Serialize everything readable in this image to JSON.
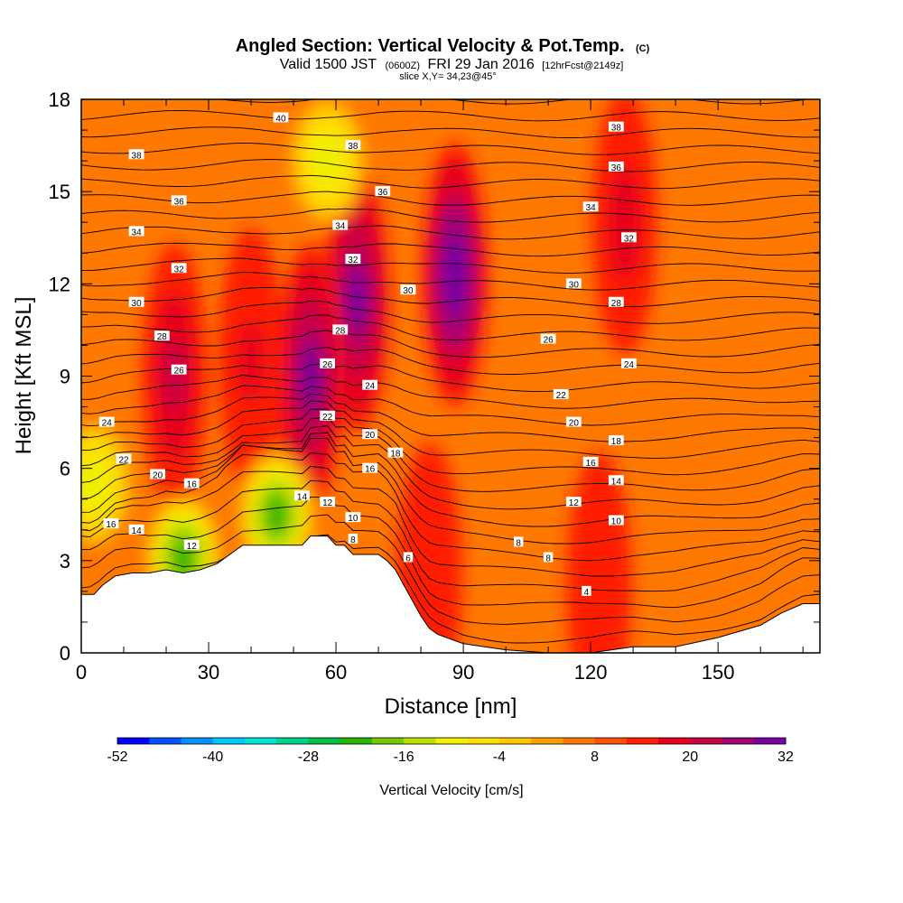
{
  "title": {
    "main": "Angled Section: Vertical Velocity & Pot.Temp.",
    "main_suffix": "(C)",
    "valid_prefix": "Valid 1500 JST",
    "valid_z": "(0600Z)",
    "valid_date": "FRI 29 Jan 2016",
    "valid_fcst": "[12hrFcst@2149z]",
    "slice": "slice X,Y= 34,23@45°"
  },
  "chart_data": {
    "type": "heatmap",
    "xlabel": "Distance [nm]",
    "ylabel": "Height [Kft MSL]",
    "xlim": [
      0,
      174
    ],
    "ylim": [
      0,
      18
    ],
    "x_ticks": [
      0,
      30,
      60,
      90,
      120,
      150
    ],
    "y_ticks": [
      0,
      3,
      6,
      9,
      12,
      15,
      18
    ],
    "colorbar": {
      "label": "Vertical Velocity [cm/s]",
      "min": -52,
      "max": 32,
      "step": 4,
      "tick_values": [
        -52,
        -40,
        -28,
        -16,
        -4,
        8,
        20,
        32
      ],
      "tick_labels": [
        "-52",
        "-40",
        "-28",
        "-16",
        "-4",
        "8",
        "20",
        "32"
      ],
      "colors": [
        "#0000ff",
        "#0050ff",
        "#0090ff",
        "#00c8ff",
        "#00e6d2",
        "#00d28c",
        "#00be46",
        "#28b400",
        "#78c800",
        "#bede00",
        "#f0f000",
        "#ffe100",
        "#ffc800",
        "#ffa000",
        "#ff7800",
        "#ff5000",
        "#ff1e00",
        "#e6001e",
        "#c80046",
        "#a00078",
        "#7800a0"
      ]
    },
    "terrain_profile": {
      "x": [
        0,
        3,
        5,
        8,
        12,
        16,
        20,
        24,
        28,
        32,
        36,
        38,
        42,
        46,
        50,
        52,
        54,
        56,
        58,
        60,
        62,
        64,
        66,
        68,
        70,
        72,
        74,
        76,
        78,
        80,
        82,
        84,
        86,
        90,
        95,
        100,
        110,
        120,
        130,
        135,
        140,
        150,
        160,
        165,
        170,
        174
      ],
      "y": [
        1.9,
        1.9,
        2.2,
        2.5,
        2.6,
        2.6,
        2.7,
        2.6,
        2.7,
        2.9,
        3.3,
        3.5,
        3.5,
        3.5,
        3.5,
        3.5,
        3.8,
        3.8,
        3.8,
        3.5,
        3.5,
        3.2,
        3.2,
        3.2,
        3.2,
        3.0,
        2.7,
        2.2,
        1.7,
        1.2,
        0.8,
        0.6,
        0.5,
        0.3,
        0.2,
        0.1,
        0.0,
        0.0,
        0.2,
        0.2,
        0.2,
        0.5,
        0.9,
        1.3,
        1.6,
        1.6
      ]
    },
    "velocity_features": [
      {
        "kind": "updraft",
        "x": 88,
        "y": 12.3,
        "peak": 32
      },
      {
        "kind": "updraft",
        "x": 65,
        "y": 11.5,
        "peak": 28
      },
      {
        "kind": "updraft",
        "x": 54,
        "y": 9.0,
        "peak": 28
      },
      {
        "kind": "updraft",
        "x": 22,
        "y": 9.0,
        "peak": 20
      },
      {
        "kind": "updraft",
        "x": 40,
        "y": 9.5,
        "peak": 16
      },
      {
        "kind": "updraft",
        "x": 128,
        "y": 14.0,
        "peak": 18
      },
      {
        "kind": "updraft",
        "x": 122,
        "y": 2.2,
        "peak": 14
      },
      {
        "kind": "updraft",
        "x": 82,
        "y": 2.5,
        "peak": 14
      },
      {
        "kind": "downdraft",
        "x": 58,
        "y": 16.0,
        "peak": -12
      },
      {
        "kind": "downdraft",
        "x": 46,
        "y": 4.5,
        "peak": -24
      },
      {
        "kind": "downdraft",
        "x": 24,
        "y": 3.1,
        "peak": -22
      },
      {
        "kind": "downdraft",
        "x": 3,
        "y": 5.5,
        "peak": -10
      }
    ],
    "isentrope_labels": [
      {
        "value": "40",
        "x": 47,
        "y": 17.4
      },
      {
        "value": "38",
        "x": 13,
        "y": 16.2
      },
      {
        "value": "38",
        "x": 64,
        "y": 16.5
      },
      {
        "value": "38",
        "x": 126,
        "y": 17.1
      },
      {
        "value": "36",
        "x": 23,
        "y": 14.7
      },
      {
        "value": "36",
        "x": 71,
        "y": 15.0
      },
      {
        "value": "36",
        "x": 126,
        "y": 15.8
      },
      {
        "value": "34",
        "x": 13,
        "y": 13.7
      },
      {
        "value": "34",
        "x": 61,
        "y": 13.9
      },
      {
        "value": "34",
        "x": 120,
        "y": 14.5
      },
      {
        "value": "32",
        "x": 23,
        "y": 12.5
      },
      {
        "value": "32",
        "x": 64,
        "y": 12.8
      },
      {
        "value": "32",
        "x": 129,
        "y": 13.5
      },
      {
        "value": "30",
        "x": 13,
        "y": 11.4
      },
      {
        "value": "30",
        "x": 77,
        "y": 11.8
      },
      {
        "value": "30",
        "x": 116,
        "y": 12.0
      },
      {
        "value": "28",
        "x": 19,
        "y": 10.3
      },
      {
        "value": "28",
        "x": 61,
        "y": 10.5
      },
      {
        "value": "28",
        "x": 126,
        "y": 11.4
      },
      {
        "value": "26",
        "x": 23,
        "y": 9.2
      },
      {
        "value": "26",
        "x": 58,
        "y": 9.4
      },
      {
        "value": "26",
        "x": 110,
        "y": 10.2
      },
      {
        "value": "24",
        "x": 6,
        "y": 7.5
      },
      {
        "value": "24",
        "x": 68,
        "y": 8.7
      },
      {
        "value": "24",
        "x": 129,
        "y": 9.4
      },
      {
        "value": "22",
        "x": 10,
        "y": 6.3
      },
      {
        "value": "22",
        "x": 58,
        "y": 7.7
      },
      {
        "value": "22",
        "x": 113,
        "y": 8.4
      },
      {
        "value": "20",
        "x": 18,
        "y": 5.8
      },
      {
        "value": "20",
        "x": 68,
        "y": 7.1
      },
      {
        "value": "20",
        "x": 116,
        "y": 7.5
      },
      {
        "value": "18",
        "x": 74,
        "y": 6.5
      },
      {
        "value": "18",
        "x": 126,
        "y": 6.9
      },
      {
        "value": "16",
        "x": 26,
        "y": 5.5
      },
      {
        "value": "16",
        "x": 68,
        "y": 6.0
      },
      {
        "value": "16",
        "x": 120,
        "y": 6.2
      },
      {
        "value": "16",
        "x": 7,
        "y": 4.2
      },
      {
        "value": "14",
        "x": 13,
        "y": 4.0
      },
      {
        "value": "14",
        "x": 52,
        "y": 5.1
      },
      {
        "value": "14",
        "x": 126,
        "y": 5.6
      },
      {
        "value": "12",
        "x": 26,
        "y": 3.5
      },
      {
        "value": "12",
        "x": 58,
        "y": 4.9
      },
      {
        "value": "12",
        "x": 116,
        "y": 4.9
      },
      {
        "value": "10",
        "x": 64,
        "y": 4.4
      },
      {
        "value": "10",
        "x": 126,
        "y": 4.3
      },
      {
        "value": "8",
        "x": 64,
        "y": 3.7
      },
      {
        "value": "8",
        "x": 103,
        "y": 3.6
      },
      {
        "value": "8",
        "x": 110,
        "y": 3.1
      },
      {
        "value": "6",
        "x": 77,
        "y": 3.1
      },
      {
        "value": "4",
        "x": 119,
        "y": 2.0
      }
    ]
  }
}
